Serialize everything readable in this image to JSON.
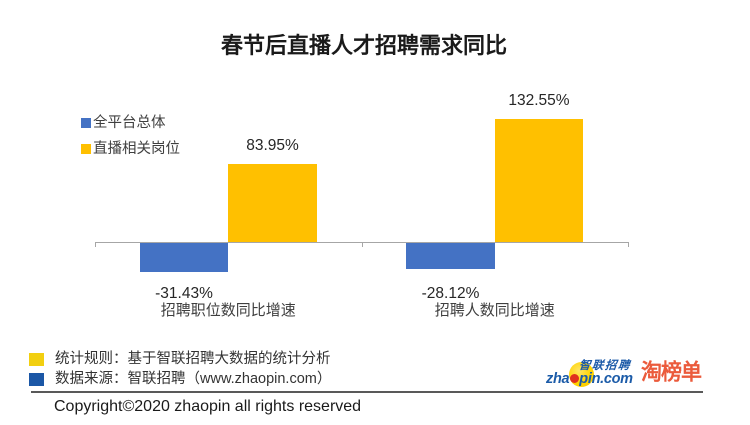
{
  "page": {
    "background": "#ffffff"
  },
  "chart_data": {
    "type": "bar",
    "title": "春节后直播人才招聘需求同比",
    "categories": [
      "招聘职位数同比增速",
      "招聘人数同比增速"
    ],
    "series": [
      {
        "name": "全平台总体",
        "color": "#4472C4",
        "values": [
          -31.43,
          -28.12
        ]
      },
      {
        "name": "直播相关岗位",
        "color": "#FFC000",
        "values": [
          83.95,
          132.55
        ]
      }
    ],
    "value_label_format": "0.00%",
    "unit": "%",
    "ylim": [
      -40,
      145
    ],
    "grid": false,
    "legend_position": "top-left",
    "axis_color": "#A6A6A6",
    "baseline": 0
  },
  "footer": {
    "notes": [
      {
        "swatch_color": "#f2cf10",
        "text": "统计规则：基于智联招聘大数据的统计分析"
      },
      {
        "swatch_color": "#1b57a6",
        "text": "数据来源：智联招聘（www.zhaopin.com）"
      }
    ],
    "logos": {
      "zhaopin": {
        "cjk_text": "智联招聘",
        "latin_prefix": "zha",
        "latin_suffix": "pin.com",
        "blue": "#1b5ba8",
        "circle_yellow": "#ffd400",
        "dot_red": "#e0301e"
      },
      "taobangdan": {
        "text": "淘榜单",
        "color": "#eb5b3c"
      }
    },
    "copyright": "Copyright©2020 zhaopin all rights reserved"
  }
}
